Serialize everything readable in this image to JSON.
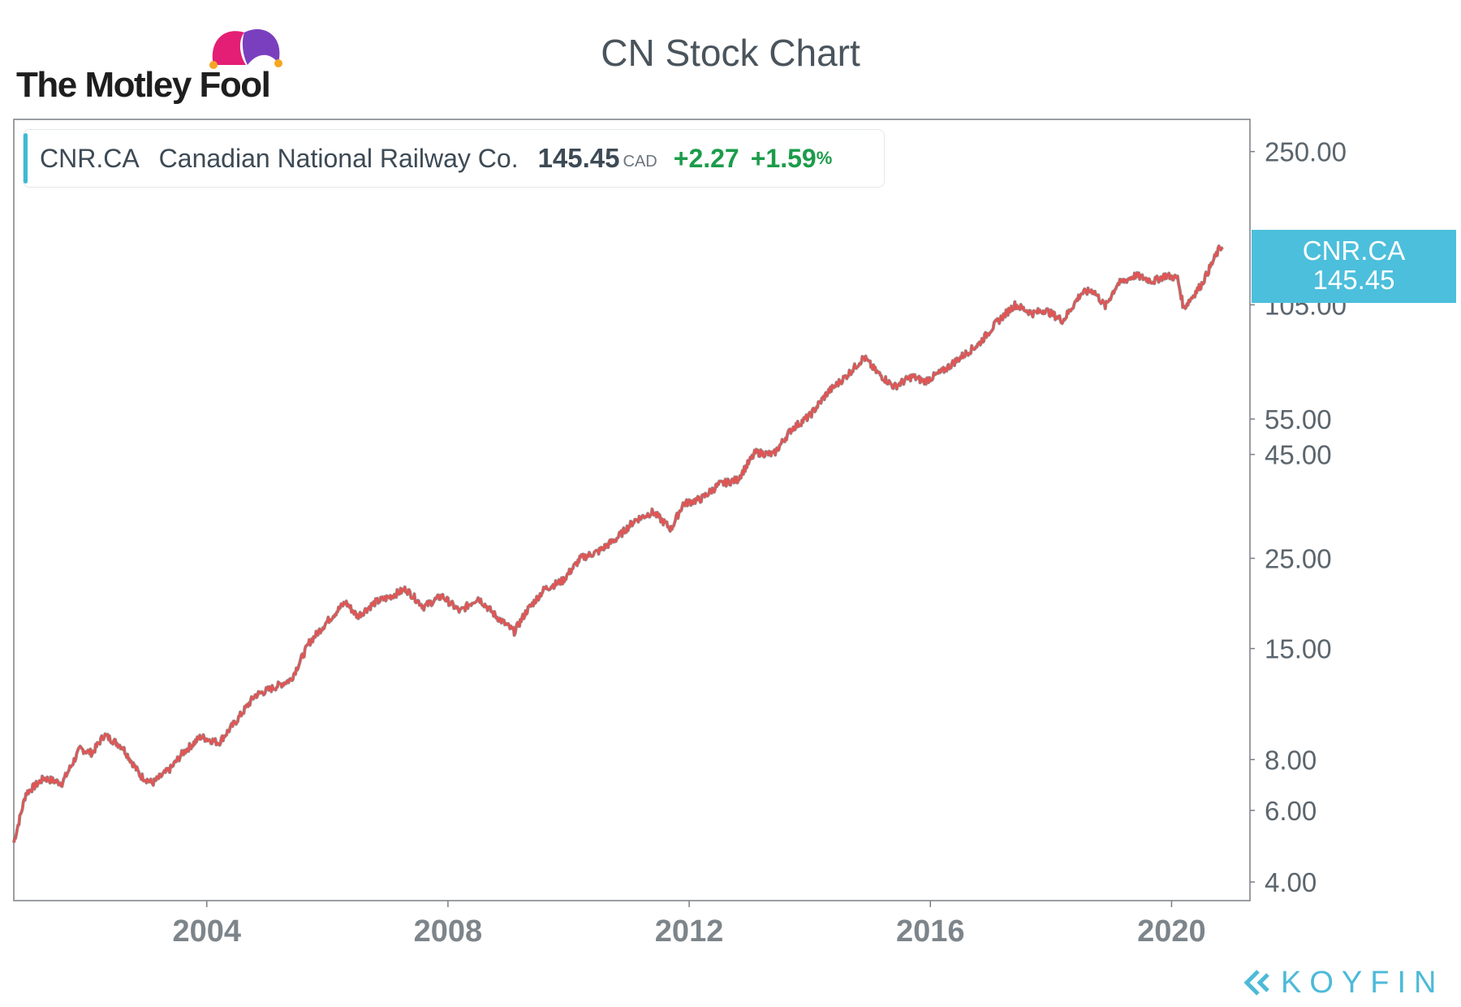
{
  "header": {
    "logo_text": "The Motley Fool",
    "logo_mark": "jester-hat-icon",
    "title": "CN Stock Chart"
  },
  "legend": {
    "ticker": "CNR.CA",
    "name": "Canadian National Railway Co.",
    "price": "145.45",
    "currency": "CAD",
    "change": "+2.27",
    "change_pct": "+1.59",
    "change_pct_symbol": "%"
  },
  "price_tag": {
    "ticker": "CNR.CA",
    "value": "145.45"
  },
  "footer": {
    "brand": "KOYFIN",
    "brand_mark": "koyfin-chevron-icon"
  },
  "colors": {
    "series": "#e05555",
    "series_dark": "#3a3a3a",
    "accent": "#4cbfdc",
    "positive": "#1c9c4a",
    "text": "#3d4a55"
  },
  "chart_data": {
    "type": "line",
    "title": "CN Stock Chart",
    "y_scale": "log",
    "ylim": [
      3.6,
      300
    ],
    "xlim": [
      2000.8,
      2021.3
    ],
    "y_ticks": [
      250,
      105,
      55,
      45,
      25,
      15,
      8,
      6,
      4
    ],
    "y_tick_labels": [
      "250.00",
      "105.00",
      "55.00",
      "45.00",
      "25.00",
      "15.00",
      "8.00",
      "6.00",
      "4.00"
    ],
    "x_ticks": [
      2004,
      2008,
      2012,
      2016,
      2020
    ],
    "x_tick_labels": [
      "2004",
      "2008",
      "2012",
      "2016",
      "2020"
    ],
    "series": [
      {
        "name": "CNR.CA",
        "x": [
          2000.8,
          2001.0,
          2001.3,
          2001.6,
          2001.9,
          2002.1,
          2002.3,
          2002.6,
          2002.9,
          2003.1,
          2003.4,
          2003.6,
          2003.9,
          2004.2,
          2004.5,
          2004.8,
          2005.1,
          2005.4,
          2005.7,
          2006.0,
          2006.3,
          2006.5,
          2006.8,
          2007.0,
          2007.3,
          2007.6,
          2007.9,
          2008.2,
          2008.5,
          2008.8,
          2009.1,
          2009.3,
          2009.6,
          2009.9,
          2010.2,
          2010.5,
          2010.8,
          2011.1,
          2011.4,
          2011.7,
          2011.9,
          2012.2,
          2012.5,
          2012.8,
          2013.1,
          2013.4,
          2013.7,
          2014.0,
          2014.3,
          2014.6,
          2014.9,
          2015.1,
          2015.4,
          2015.7,
          2015.9,
          2016.2,
          2016.5,
          2016.8,
          2017.1,
          2017.4,
          2017.7,
          2017.9,
          2018.2,
          2018.5,
          2018.7,
          2018.9,
          2019.1,
          2019.4,
          2019.7,
          2019.9,
          2020.1,
          2020.2,
          2020.5,
          2020.8,
          2020.85
        ],
        "values": [
          5.0,
          6.6,
          7.2,
          7.0,
          8.5,
          8.3,
          9.2,
          8.6,
          7.3,
          7.0,
          7.6,
          8.3,
          9.1,
          8.8,
          10.0,
          11.5,
          12.0,
          12.6,
          15.5,
          17.5,
          19.5,
          18.0,
          19.5,
          20.0,
          21.0,
          19.0,
          20.2,
          18.5,
          20.0,
          18.0,
          16.5,
          18.5,
          21.0,
          22.0,
          25.0,
          26.0,
          28.0,
          31.0,
          32.5,
          29.5,
          34.0,
          35.0,
          38.0,
          39.0,
          45.5,
          45.0,
          52.0,
          56.0,
          64.0,
          70.0,
          78.0,
          72.0,
          66.0,
          70.0,
          68.0,
          72.0,
          78.0,
          84.0,
          95.0,
          105.0,
          100.0,
          102.0,
          96.0,
          112.0,
          114.0,
          104.0,
          118.0,
          124.0,
          120.0,
          124.0,
          122.0,
          103.0,
          118.0,
          145.0,
          145.45
        ]
      }
    ]
  }
}
